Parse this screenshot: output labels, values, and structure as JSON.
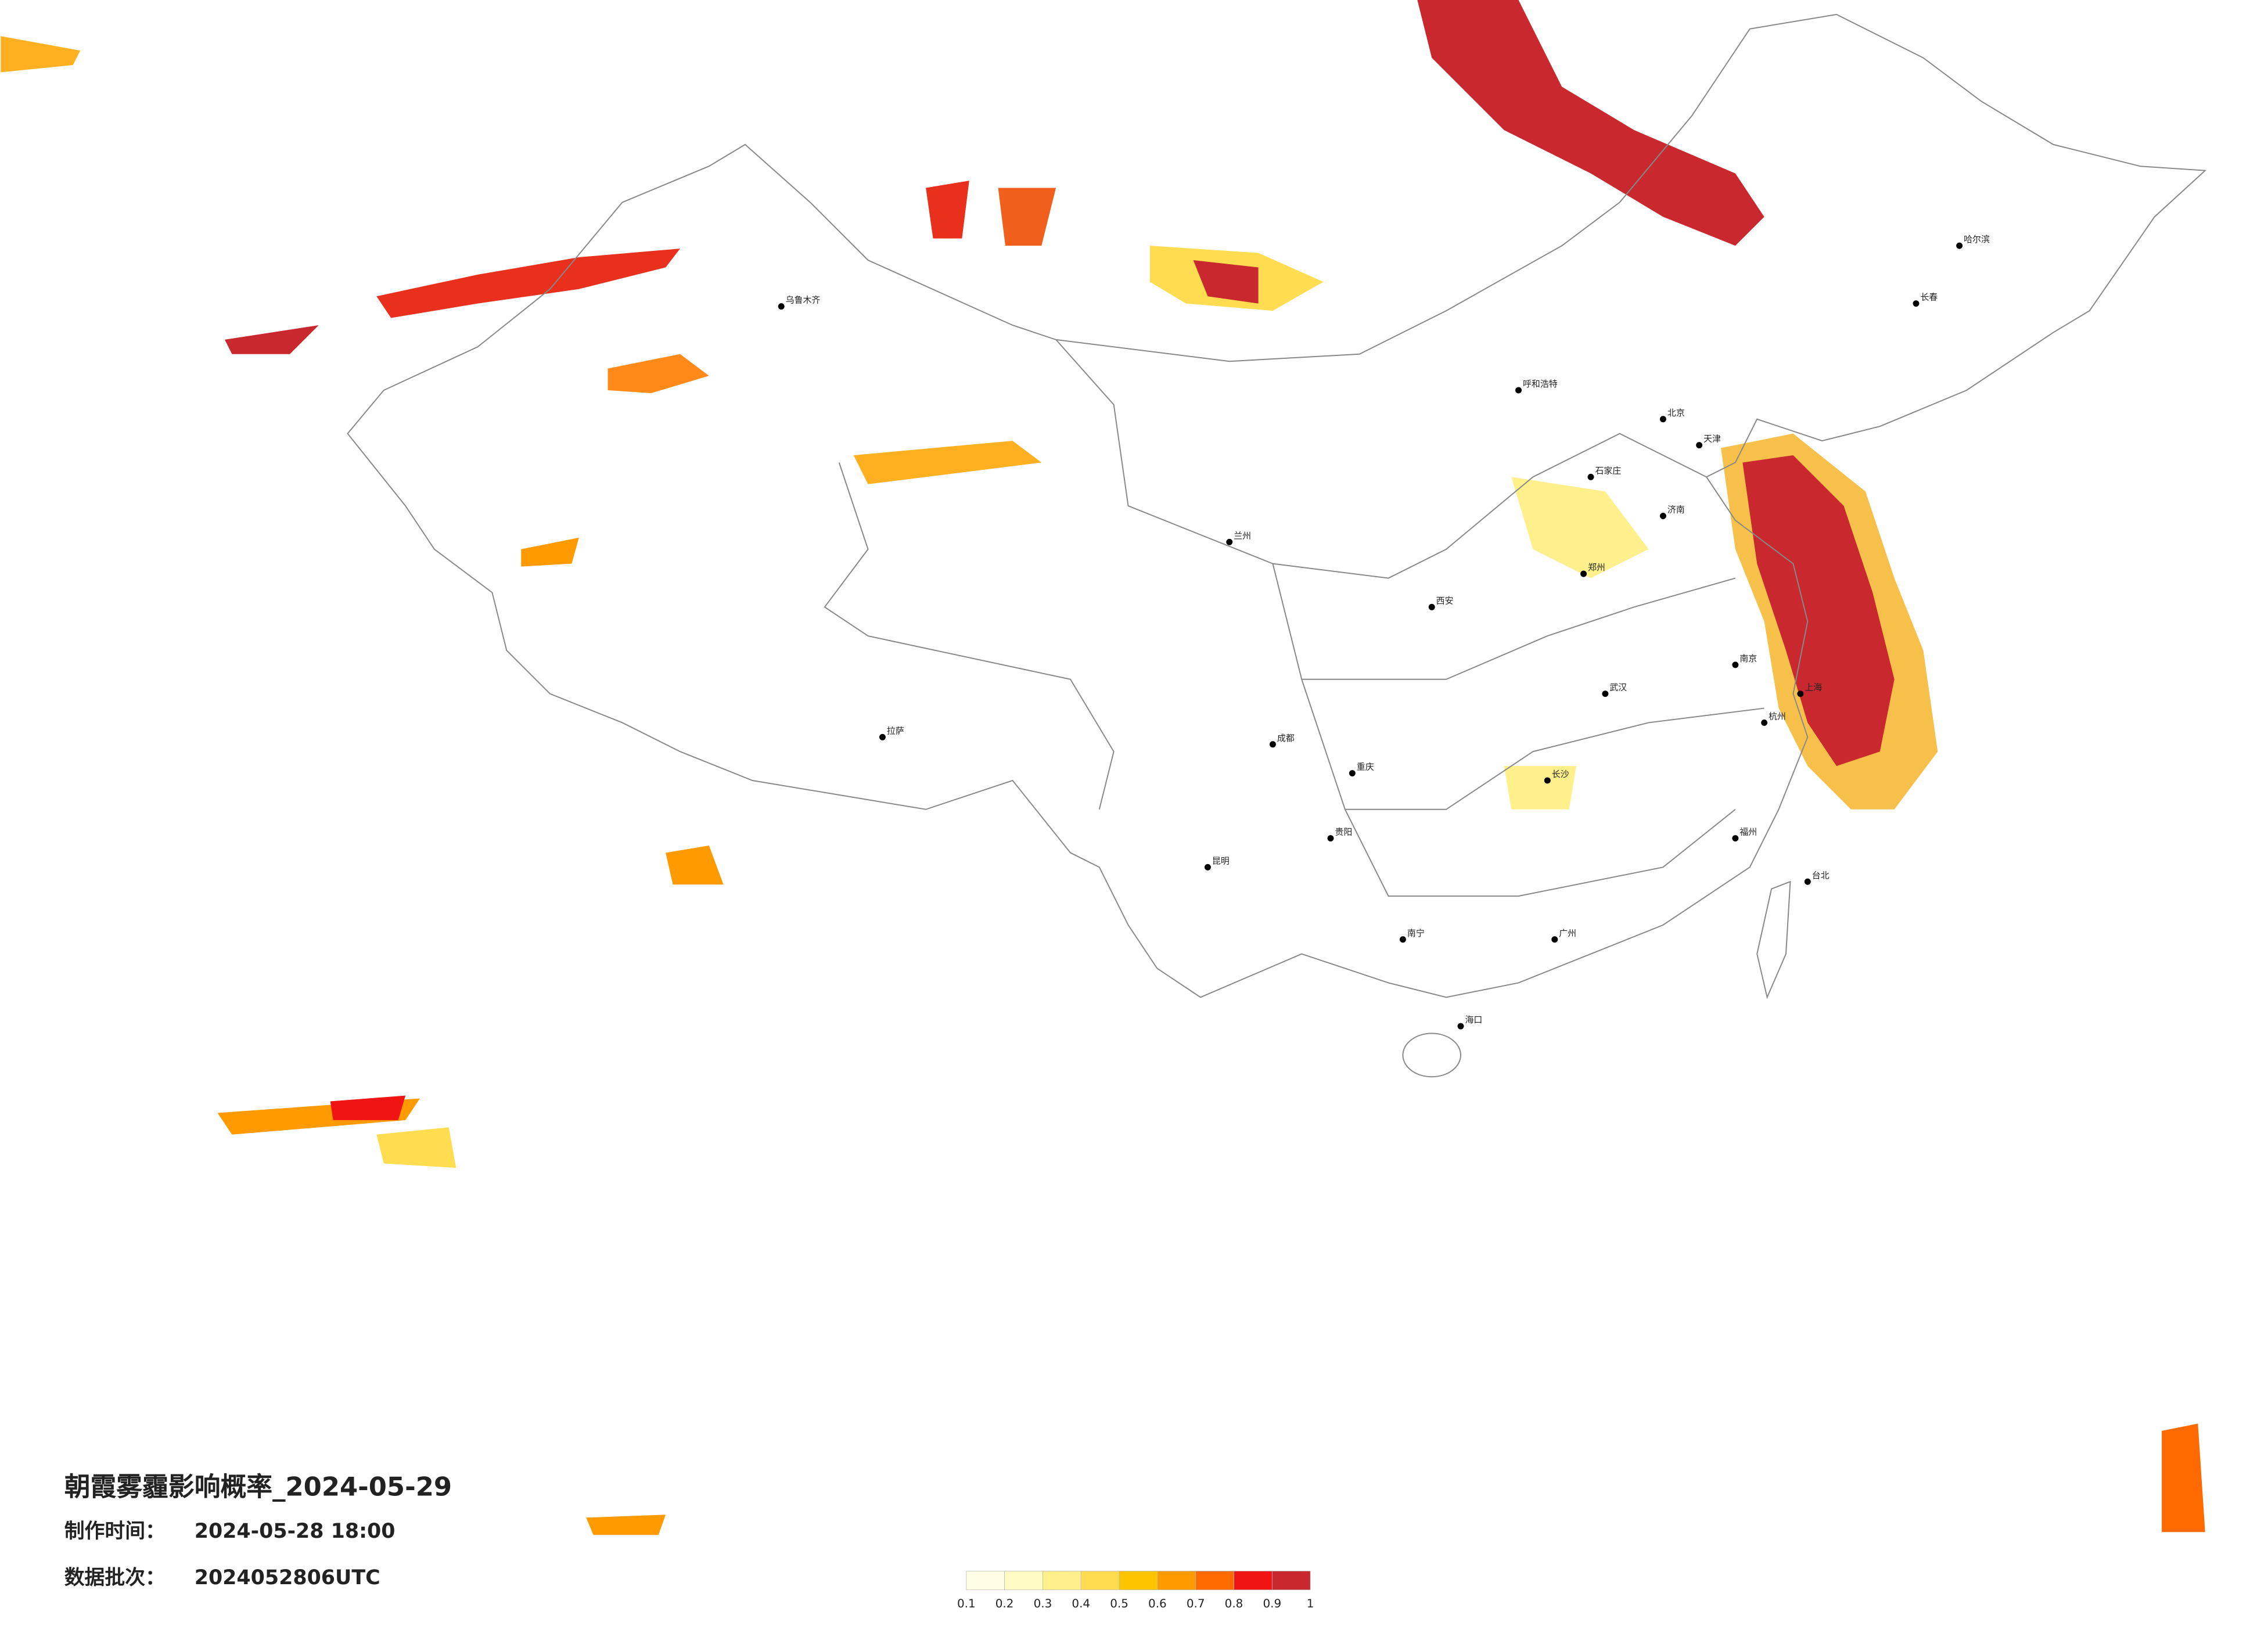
{
  "title": "朝霞雾霾影响概率_2024-05-29",
  "production_time": {
    "label": "制作时间：",
    "value": "2024-05-28 18:00"
  },
  "batch": {
    "label": "数据批次：",
    "value": "2024052806UTC"
  },
  "colorbar": {
    "ticks": [
      0.1,
      0.2,
      0.3,
      0.4,
      0.5,
      0.6,
      0.7,
      0.8,
      0.9,
      1
    ],
    "colors": [
      "#fffde6",
      "#fffbc2",
      "#fff08c",
      "#ffdc50",
      "#ffc400",
      "#ff9a00",
      "#ff6a00",
      "#f01414",
      "#c8282e"
    ]
  },
  "cities": [
    "北京",
    "天津",
    "石家庄",
    "济南",
    "郑州",
    "南京",
    "上海",
    "杭州",
    "武汉",
    "长沙",
    "广州",
    "成都",
    "重庆",
    "西安",
    "兰州",
    "乌鲁木齐",
    "拉萨",
    "哈尔滨",
    "长春",
    "呼和浩特",
    "昆明",
    "海口",
    "台北",
    "福州",
    "贵阳",
    "南宁"
  ]
}
